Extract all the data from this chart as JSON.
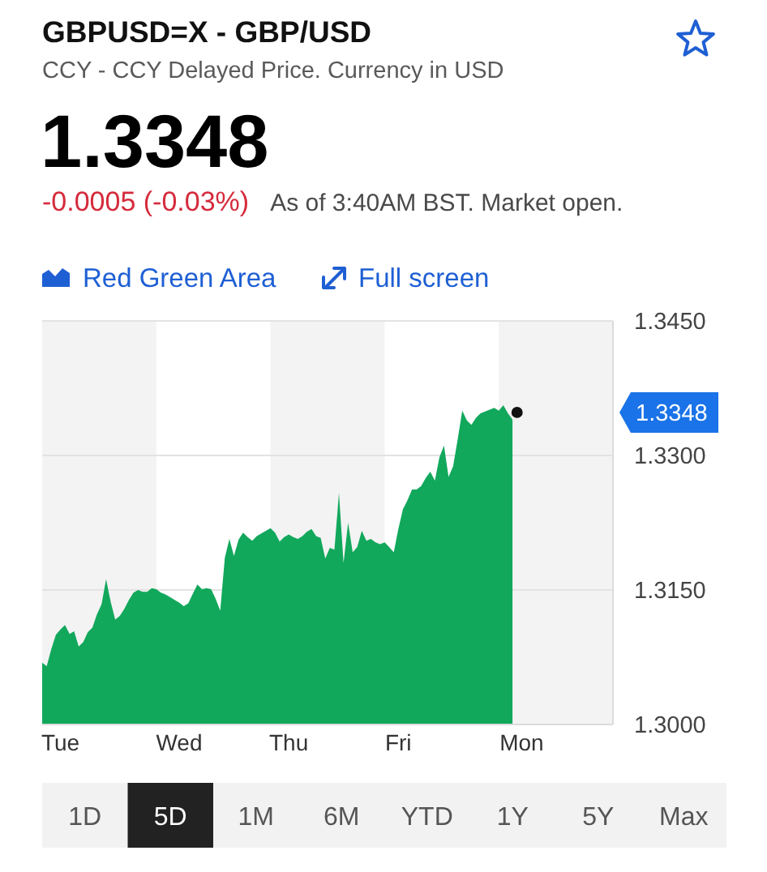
{
  "chart_data": {
    "type": "area",
    "title": "GBPUSD=X - GBP/USD",
    "subtitle": "CCY - CCY Delayed Price. Currency in USD",
    "annotations": [
      "1.3348",
      "-0.0005 (-0.03%)",
      "As of 3:40AM BST. Market open.",
      "Red Green Area",
      "Full screen",
      "1D",
      "5D",
      "1M",
      "6M",
      "YTD",
      "1Y",
      "5Y",
      "Max",
      "1.3348"
    ],
    "categories": [
      null,
      null,
      null,
      null,
      "Tue",
      null,
      null,
      null,
      null,
      null,
      null,
      null,
      null,
      null,
      null,
      null,
      null,
      null,
      null,
      null,
      null,
      null,
      null,
      null,
      null,
      null,
      null,
      null,
      null,
      null,
      "Wed",
      null,
      null,
      null,
      null,
      null,
      null,
      null,
      null,
      null,
      null,
      null,
      null,
      null,
      null,
      null,
      null,
      null,
      null,
      null,
      null,
      null,
      null,
      null,
      "Thu",
      null,
      null,
      null,
      null,
      null,
      null,
      null,
      null,
      null,
      null,
      null,
      null,
      null,
      null,
      null,
      null,
      null,
      null,
      null,
      null,
      null,
      null,
      null,
      "Fri",
      null,
      null,
      null,
      null,
      null,
      null,
      null,
      null,
      null,
      null,
      null,
      null,
      null,
      null,
      null,
      null,
      null,
      null,
      null,
      null,
      null,
      null,
      null,
      null,
      null,
      null,
      "Mon",
      null,
      null,
      null,
      null,
      null,
      null,
      null,
      null,
      null,
      null,
      null,
      null,
      null,
      null,
      null,
      null,
      null,
      null,
      null,
      null
    ],
    "ylim": [
      1.3,
      1.345
    ],
    "yticks": [
      {
        "value": 1.3,
        "label": "1.3000"
      },
      {
        "value": 1.315,
        "label": "1.3150"
      },
      {
        "value": 1.33,
        "label": "1.3300"
      },
      {
        "value": 1.345,
        "label": "1.3450"
      }
    ],
    "grid": "y",
    "series": [
      {
        "color": "#12a85c",
        "values": [
          1.3069,
          1.3065,
          1.3084,
          1.31,
          1.3106,
          1.3111,
          1.3101,
          1.3104,
          1.3087,
          1.3092,
          1.3103,
          1.3108,
          1.3123,
          1.3134,
          1.3162,
          1.3137,
          1.3117,
          1.3121,
          1.3129,
          1.3139,
          1.3147,
          1.315,
          1.3148,
          1.3148,
          1.3152,
          1.3151,
          1.3147,
          1.3145,
          1.3142,
          1.3139,
          1.3136,
          1.3132,
          1.3135,
          1.3146,
          1.3156,
          1.3151,
          1.3152,
          1.3151,
          1.314,
          1.3127,
          1.3186,
          1.3207,
          1.3188,
          1.3206,
          1.3214,
          1.3209,
          1.3205,
          1.321,
          1.3213,
          1.3216,
          1.3219,
          1.3214,
          1.3204,
          1.3209,
          1.3212,
          1.3209,
          1.3207,
          1.321,
          1.3215,
          1.3218,
          1.321,
          1.3208,
          1.3185,
          1.3197,
          1.3195,
          1.3258,
          1.318,
          1.3225,
          1.3192,
          1.3198,
          1.3216,
          1.3205,
          1.3207,
          1.3203,
          1.3201,
          1.3203,
          1.3198,
          1.3192,
          1.3218,
          1.324,
          1.325,
          1.3262,
          1.3262,
          1.3266,
          1.3275,
          1.3282,
          1.3272,
          1.3298,
          1.3311,
          1.3276,
          1.3288,
          1.3318,
          1.335,
          1.3339,
          1.3334,
          1.3342,
          1.3347,
          1.3349,
          1.3351,
          1.3353,
          1.335,
          1.3356,
          1.3347,
          1.334,
          null,
          null,
          null,
          null,
          null,
          null,
          null,
          null,
          null,
          null,
          null,
          null,
          null,
          null,
          null,
          null,
          null,
          null,
          null,
          null,
          null,
          null
        ]
      },
      {
        "type": "scatter",
        "color": "#111111",
        "marker": "circle",
        "values": [
          null,
          null,
          null,
          null,
          null,
          null,
          null,
          null,
          null,
          null,
          null,
          null,
          null,
          null,
          null,
          null,
          null,
          null,
          null,
          null,
          null,
          null,
          null,
          null,
          null,
          null,
          null,
          null,
          null,
          null,
          null,
          null,
          null,
          null,
          null,
          null,
          null,
          null,
          null,
          null,
          null,
          null,
          null,
          null,
          null,
          null,
          null,
          null,
          null,
          null,
          null,
          null,
          null,
          null,
          null,
          null,
          null,
          null,
          null,
          null,
          null,
          null,
          null,
          null,
          null,
          null,
          null,
          null,
          null,
          null,
          null,
          null,
          null,
          null,
          null,
          null,
          null,
          null,
          null,
          null,
          null,
          null,
          null,
          null,
          null,
          null,
          null,
          null,
          null,
          null,
          null,
          null,
          null,
          null,
          null,
          null,
          null,
          null,
          null,
          null,
          null,
          null,
          null,
          null,
          1.3348,
          null,
          null,
          null,
          null,
          null,
          null,
          null,
          null,
          null,
          null,
          null,
          null,
          null,
          null,
          null,
          null,
          null,
          null,
          null,
          null,
          null
        ]
      }
    ]
  }
}
